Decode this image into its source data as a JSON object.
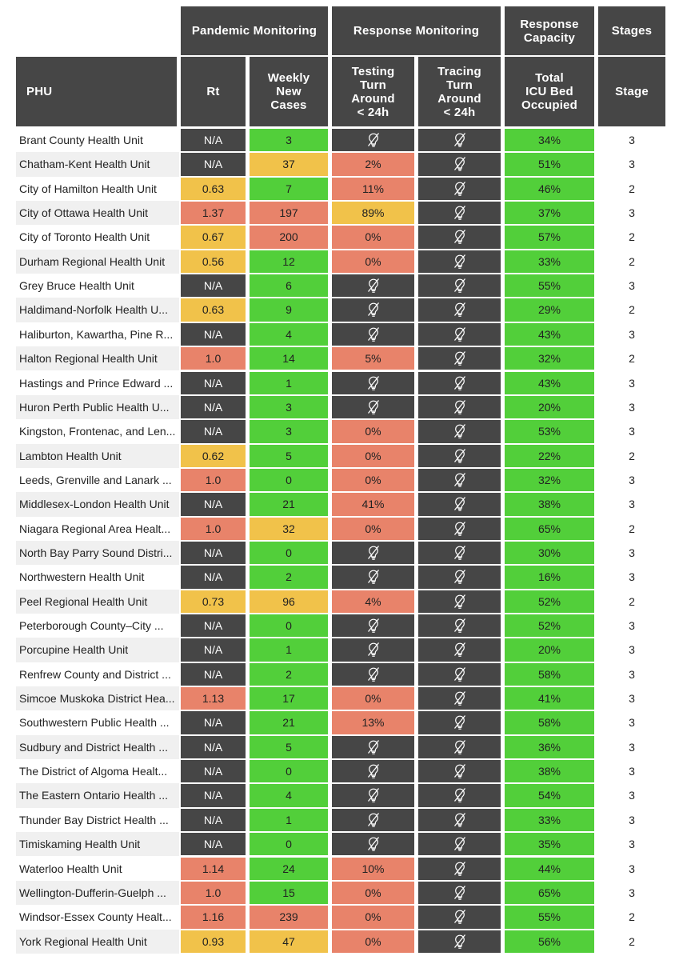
{
  "colors": {
    "header": "#464646",
    "na": "#464646",
    "green": "#52cf3a",
    "yellow": "#f1c24a",
    "red": "#e8836a",
    "row_alt": "#f0f0f0"
  },
  "headers": {
    "group_pandemic": "Pandemic Monitoring",
    "group_response": "Response Monitoring",
    "group_capacity": "Response Capacity",
    "group_stages": "Stages",
    "col_phu": "PHU",
    "col_rt": "Rt",
    "col_cases": "Weekly\nNew\nCases",
    "col_testing": "Testing\nTurn\nAround\n< 24h",
    "col_tracing": "Tracing\nTurn\nAround\n< 24h",
    "col_icu": "Total\nICU Bed\nOccupied",
    "col_stage": "Stage"
  },
  "chart_data": {
    "type": "table",
    "columns": [
      "PHU",
      "Rt",
      "Weekly New Cases",
      "Testing Turn Around < 24h",
      "Tracing Turn Around < 24h",
      "Total ICU Bed Occupied",
      "Stage"
    ],
    "rows": [
      {
        "phu": "Brant County Health Unit",
        "rt": "N/A",
        "rt_c": "na",
        "cases": "3",
        "cases_c": "green",
        "testing": "",
        "testing_c": "na",
        "tracing": "",
        "tracing_c": "na",
        "icu": "34%",
        "icu_c": "green",
        "stage": "3"
      },
      {
        "phu": "Chatham-Kent Health Unit",
        "rt": "N/A",
        "rt_c": "na",
        "cases": "37",
        "cases_c": "yellow",
        "testing": "2%",
        "testing_c": "red",
        "tracing": "",
        "tracing_c": "na",
        "icu": "51%",
        "icu_c": "green",
        "stage": "3"
      },
      {
        "phu": "City of Hamilton Health Unit",
        "rt": "0.63",
        "rt_c": "yellow",
        "cases": "7",
        "cases_c": "green",
        "testing": "11%",
        "testing_c": "red",
        "tracing": "",
        "tracing_c": "na",
        "icu": "46%",
        "icu_c": "green",
        "stage": "2"
      },
      {
        "phu": "City of Ottawa Health Unit",
        "rt": "1.37",
        "rt_c": "red",
        "cases": "197",
        "cases_c": "red",
        "testing": "89%",
        "testing_c": "yellow",
        "tracing": "",
        "tracing_c": "na",
        "icu": "37%",
        "icu_c": "green",
        "stage": "3"
      },
      {
        "phu": "City of Toronto Health Unit",
        "rt": "0.67",
        "rt_c": "yellow",
        "cases": "200",
        "cases_c": "red",
        "testing": "0%",
        "testing_c": "red",
        "tracing": "",
        "tracing_c": "na",
        "icu": "57%",
        "icu_c": "green",
        "stage": "2"
      },
      {
        "phu": "Durham Regional Health Unit",
        "rt": "0.56",
        "rt_c": "yellow",
        "cases": "12",
        "cases_c": "green",
        "testing": "0%",
        "testing_c": "red",
        "tracing": "",
        "tracing_c": "na",
        "icu": "33%",
        "icu_c": "green",
        "stage": "2"
      },
      {
        "phu": "Grey Bruce Health Unit",
        "rt": "N/A",
        "rt_c": "na",
        "cases": "6",
        "cases_c": "green",
        "testing": "",
        "testing_c": "na",
        "tracing": "",
        "tracing_c": "na",
        "icu": "55%",
        "icu_c": "green",
        "stage": "3"
      },
      {
        "phu": "Haldimand-Norfolk Health U...",
        "rt": "0.63",
        "rt_c": "yellow",
        "cases": "9",
        "cases_c": "green",
        "testing": "",
        "testing_c": "na",
        "tracing": "",
        "tracing_c": "na",
        "icu": "29%",
        "icu_c": "green",
        "stage": "2"
      },
      {
        "phu": "Haliburton, Kawartha, Pine R...",
        "rt": "N/A",
        "rt_c": "na",
        "cases": "4",
        "cases_c": "green",
        "testing": "",
        "testing_c": "na",
        "tracing": "",
        "tracing_c": "na",
        "icu": "43%",
        "icu_c": "green",
        "stage": "3"
      },
      {
        "phu": "Halton Regional Health Unit",
        "rt": "1.0",
        "rt_c": "red",
        "cases": "14",
        "cases_c": "green",
        "testing": "5%",
        "testing_c": "red",
        "tracing": "",
        "tracing_c": "na",
        "icu": "32%",
        "icu_c": "green",
        "stage": "2"
      },
      {
        "phu": "Hastings and Prince Edward ...",
        "rt": "N/A",
        "rt_c": "na",
        "cases": "1",
        "cases_c": "green",
        "testing": "",
        "testing_c": "na",
        "tracing": "",
        "tracing_c": "na",
        "icu": "43%",
        "icu_c": "green",
        "stage": "3"
      },
      {
        "phu": "Huron Perth Public Health U...",
        "rt": "N/A",
        "rt_c": "na",
        "cases": "3",
        "cases_c": "green",
        "testing": "",
        "testing_c": "na",
        "tracing": "",
        "tracing_c": "na",
        "icu": "20%",
        "icu_c": "green",
        "stage": "3"
      },
      {
        "phu": "Kingston, Frontenac, and Len...",
        "rt": "N/A",
        "rt_c": "na",
        "cases": "3",
        "cases_c": "green",
        "testing": "0%",
        "testing_c": "red",
        "tracing": "",
        "tracing_c": "na",
        "icu": "53%",
        "icu_c": "green",
        "stage": "3"
      },
      {
        "phu": "Lambton Health Unit",
        "rt": "0.62",
        "rt_c": "yellow",
        "cases": "5",
        "cases_c": "green",
        "testing": "0%",
        "testing_c": "red",
        "tracing": "",
        "tracing_c": "na",
        "icu": "22%",
        "icu_c": "green",
        "stage": "2"
      },
      {
        "phu": "Leeds, Grenville and Lanark ...",
        "rt": "1.0",
        "rt_c": "red",
        "cases": "0",
        "cases_c": "green",
        "testing": "0%",
        "testing_c": "red",
        "tracing": "",
        "tracing_c": "na",
        "icu": "32%",
        "icu_c": "green",
        "stage": "3"
      },
      {
        "phu": "Middlesex-London Health Unit",
        "rt": "N/A",
        "rt_c": "na",
        "cases": "21",
        "cases_c": "green",
        "testing": "41%",
        "testing_c": "red",
        "tracing": "",
        "tracing_c": "na",
        "icu": "38%",
        "icu_c": "green",
        "stage": "3"
      },
      {
        "phu": "Niagara Regional Area Healt...",
        "rt": "1.0",
        "rt_c": "red",
        "cases": "32",
        "cases_c": "yellow",
        "testing": "0%",
        "testing_c": "red",
        "tracing": "",
        "tracing_c": "na",
        "icu": "65%",
        "icu_c": "green",
        "stage": "2"
      },
      {
        "phu": "North Bay Parry Sound Distri...",
        "rt": "N/A",
        "rt_c": "na",
        "cases": "0",
        "cases_c": "green",
        "testing": "",
        "testing_c": "na",
        "tracing": "",
        "tracing_c": "na",
        "icu": "30%",
        "icu_c": "green",
        "stage": "3"
      },
      {
        "phu": "Northwestern Health Unit",
        "rt": "N/A",
        "rt_c": "na",
        "cases": "2",
        "cases_c": "green",
        "testing": "",
        "testing_c": "na",
        "tracing": "",
        "tracing_c": "na",
        "icu": "16%",
        "icu_c": "green",
        "stage": "3"
      },
      {
        "phu": "Peel Regional Health Unit",
        "rt": "0.73",
        "rt_c": "yellow",
        "cases": "96",
        "cases_c": "yellow",
        "testing": "4%",
        "testing_c": "red",
        "tracing": "",
        "tracing_c": "na",
        "icu": "52%",
        "icu_c": "green",
        "stage": "2"
      },
      {
        "phu": "Peterborough County–City ...",
        "rt": "N/A",
        "rt_c": "na",
        "cases": "0",
        "cases_c": "green",
        "testing": "",
        "testing_c": "na",
        "tracing": "",
        "tracing_c": "na",
        "icu": "52%",
        "icu_c": "green",
        "stage": "3"
      },
      {
        "phu": "Porcupine Health Unit",
        "rt": "N/A",
        "rt_c": "na",
        "cases": "1",
        "cases_c": "green",
        "testing": "",
        "testing_c": "na",
        "tracing": "",
        "tracing_c": "na",
        "icu": "20%",
        "icu_c": "green",
        "stage": "3"
      },
      {
        "phu": "Renfrew County and District ...",
        "rt": "N/A",
        "rt_c": "na",
        "cases": "2",
        "cases_c": "green",
        "testing": "",
        "testing_c": "na",
        "tracing": "",
        "tracing_c": "na",
        "icu": "58%",
        "icu_c": "green",
        "stage": "3"
      },
      {
        "phu": "Simcoe Muskoka District Hea...",
        "rt": "1.13",
        "rt_c": "red",
        "cases": "17",
        "cases_c": "green",
        "testing": "0%",
        "testing_c": "red",
        "tracing": "",
        "tracing_c": "na",
        "icu": "41%",
        "icu_c": "green",
        "stage": "3"
      },
      {
        "phu": "Southwestern Public Health ...",
        "rt": "N/A",
        "rt_c": "na",
        "cases": "21",
        "cases_c": "green",
        "testing": "13%",
        "testing_c": "red",
        "tracing": "",
        "tracing_c": "na",
        "icu": "58%",
        "icu_c": "green",
        "stage": "3"
      },
      {
        "phu": "Sudbury and District Health ...",
        "rt": "N/A",
        "rt_c": "na",
        "cases": "5",
        "cases_c": "green",
        "testing": "",
        "testing_c": "na",
        "tracing": "",
        "tracing_c": "na",
        "icu": "36%",
        "icu_c": "green",
        "stage": "3"
      },
      {
        "phu": "The District of Algoma Healt...",
        "rt": "N/A",
        "rt_c": "na",
        "cases": "0",
        "cases_c": "green",
        "testing": "",
        "testing_c": "na",
        "tracing": "",
        "tracing_c": "na",
        "icu": "38%",
        "icu_c": "green",
        "stage": "3"
      },
      {
        "phu": "The Eastern Ontario Health ...",
        "rt": "N/A",
        "rt_c": "na",
        "cases": "4",
        "cases_c": "green",
        "testing": "",
        "testing_c": "na",
        "tracing": "",
        "tracing_c": "na",
        "icu": "54%",
        "icu_c": "green",
        "stage": "3"
      },
      {
        "phu": "Thunder Bay District Health ...",
        "rt": "N/A",
        "rt_c": "na",
        "cases": "1",
        "cases_c": "green",
        "testing": "",
        "testing_c": "na",
        "tracing": "",
        "tracing_c": "na",
        "icu": "33%",
        "icu_c": "green",
        "stage": "3"
      },
      {
        "phu": "Timiskaming Health Unit",
        "rt": "N/A",
        "rt_c": "na",
        "cases": "0",
        "cases_c": "green",
        "testing": "",
        "testing_c": "na",
        "tracing": "",
        "tracing_c": "na",
        "icu": "35%",
        "icu_c": "green",
        "stage": "3"
      },
      {
        "phu": "Waterloo Health Unit",
        "rt": "1.14",
        "rt_c": "red",
        "cases": "24",
        "cases_c": "green",
        "testing": "10%",
        "testing_c": "red",
        "tracing": "",
        "tracing_c": "na",
        "icu": "44%",
        "icu_c": "green",
        "stage": "3"
      },
      {
        "phu": "Wellington-Dufferin-Guelph ...",
        "rt": "1.0",
        "rt_c": "red",
        "cases": "15",
        "cases_c": "green",
        "testing": "0%",
        "testing_c": "red",
        "tracing": "",
        "tracing_c": "na",
        "icu": "65%",
        "icu_c": "green",
        "stage": "3"
      },
      {
        "phu": "Windsor-Essex County Healt...",
        "rt": "1.16",
        "rt_c": "red",
        "cases": "239",
        "cases_c": "red",
        "testing": "0%",
        "testing_c": "red",
        "tracing": "",
        "tracing_c": "na",
        "icu": "55%",
        "icu_c": "green",
        "stage": "2"
      },
      {
        "phu": "York Regional Health Unit",
        "rt": "0.93",
        "rt_c": "yellow",
        "cases": "47",
        "cases_c": "yellow",
        "testing": "0%",
        "testing_c": "red",
        "tracing": "",
        "tracing_c": "na",
        "icu": "56%",
        "icu_c": "green",
        "stage": "2"
      }
    ]
  }
}
